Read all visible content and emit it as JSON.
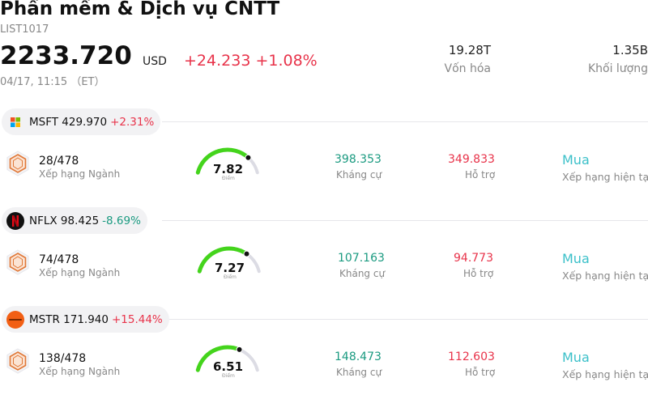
{
  "header": {
    "title": "Phần mềm & Dịch vụ CNTT",
    "code": "LIST1017",
    "price": "2233.720",
    "currency": "USD",
    "change": "+24.233 +1.08%",
    "time": "04/17, 11:15 （ET）"
  },
  "stats": {
    "market_cap_value": "19.28T",
    "market_cap_label": "Vốn hóa",
    "volume_value": "1.35B",
    "volume_label": "Khối lượng"
  },
  "stocks": [
    {
      "ticker_price": "MSFT 429.970",
      "change": "+2.31%",
      "logo": "microsoft-logo",
      "rank": "28/478",
      "rank_label": "Xếp hạng Ngành",
      "score": "7.82",
      "score_fraction": 0.78,
      "score_label": "Điểm",
      "resistance": "398.353",
      "resistance_label": "Kháng cự",
      "support": "349.833",
      "support_label": "Hỗ trợ",
      "rating": "Mua",
      "rating_label": "Xếp hạng hiện tại"
    },
    {
      "ticker_price": "NFLX 98.425",
      "change": "-8.69%",
      "logo": "netflix-logo",
      "rank": "74/478",
      "rank_label": "Xếp hạng Ngành",
      "score": "7.27",
      "score_fraction": 0.73,
      "score_label": "Điểm",
      "resistance": "107.163",
      "resistance_label": "Kháng cự",
      "support": "94.773",
      "support_label": "Hỗ trợ",
      "rating": "Mua",
      "rating_label": "Xếp hạng hiện tại"
    },
    {
      "ticker_price": "MSTR 171.940",
      "change": "+15.44%",
      "logo": "strategy-logo",
      "rank": "138/478",
      "rank_label": "Xếp hạng Ngành",
      "score": "6.51",
      "score_fraction": 0.65,
      "score_label": "Điểm",
      "resistance": "148.473",
      "resistance_label": "Kháng cự",
      "support": "112.603",
      "support_label": "Hỗ trợ",
      "rating": "Mua",
      "rating_label": "Xếp hạng hiện tại"
    }
  ],
  "colors": {
    "up": "#e8334a",
    "down": "#1a9a80",
    "gauge_fill": "#44d41c",
    "gauge_track": "#dcdce4",
    "rating": "#3bc0c9"
  }
}
